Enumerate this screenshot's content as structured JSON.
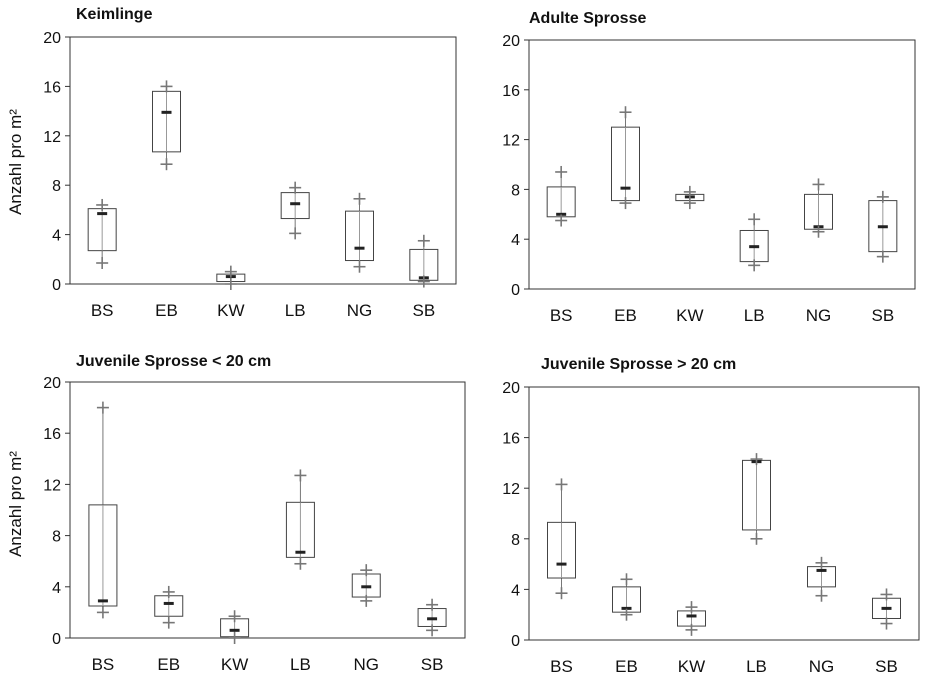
{
  "chart_data": [
    {
      "type": "box",
      "title": "Keimlinge",
      "ylabel": "Anzahl pro m²",
      "xlabel": "",
      "ylim": [
        0,
        20
      ],
      "yticks": [
        0,
        4,
        8,
        12,
        16,
        20
      ],
      "categories": [
        "BS",
        "EB",
        "KW",
        "LB",
        "NG",
        "SB"
      ],
      "boxes": [
        {
          "q1": 2.7,
          "median": 5.7,
          "q3": 6.1,
          "min": 1.7,
          "max": 6.4
        },
        {
          "q1": 10.7,
          "median": 13.9,
          "q3": 15.6,
          "min": 9.7,
          "max": 16.0
        },
        {
          "q1": 0.2,
          "median": 0.6,
          "q3": 0.8,
          "min": 0.0,
          "max": 1.0
        },
        {
          "q1": 5.3,
          "median": 6.5,
          "q3": 7.4,
          "min": 4.1,
          "max": 7.8
        },
        {
          "q1": 1.9,
          "median": 2.9,
          "q3": 5.9,
          "min": 1.4,
          "max": 6.9
        },
        {
          "q1": 0.3,
          "median": 0.5,
          "q3": 2.8,
          "min": 0.2,
          "max": 3.5
        }
      ]
    },
    {
      "type": "box",
      "title": "Adulte Sprosse",
      "ylabel": "",
      "xlabel": "",
      "ylim": [
        0,
        20
      ],
      "yticks": [
        0,
        4,
        8,
        12,
        16,
        20
      ],
      "categories": [
        "BS",
        "EB",
        "KW",
        "LB",
        "NG",
        "SB"
      ],
      "boxes": [
        {
          "q1": 5.8,
          "median": 6.0,
          "q3": 8.2,
          "min": 5.5,
          "max": 9.4
        },
        {
          "q1": 7.1,
          "median": 8.1,
          "q3": 13.0,
          "min": 6.9,
          "max": 14.2
        },
        {
          "q1": 7.1,
          "median": 7.4,
          "q3": 7.6,
          "min": 6.9,
          "max": 7.8
        },
        {
          "q1": 2.2,
          "median": 3.4,
          "q3": 4.7,
          "min": 1.9,
          "max": 5.6
        },
        {
          "q1": 4.8,
          "median": 5.0,
          "q3": 7.6,
          "min": 4.6,
          "max": 8.4
        },
        {
          "q1": 3.0,
          "median": 5.0,
          "q3": 7.1,
          "min": 2.6,
          "max": 7.4
        }
      ]
    },
    {
      "type": "box",
      "title": "Juvenile Sprosse < 20 cm",
      "ylabel": "Anzahl pro m²",
      "xlabel": "",
      "ylim": [
        0,
        20
      ],
      "yticks": [
        0,
        4,
        8,
        12,
        16,
        20
      ],
      "categories": [
        "BS",
        "EB",
        "KW",
        "LB",
        "NG",
        "SB"
      ],
      "boxes": [
        {
          "q1": 2.5,
          "median": 2.9,
          "q3": 10.4,
          "min": 2.0,
          "max": 18.0
        },
        {
          "q1": 1.7,
          "median": 2.7,
          "q3": 3.3,
          "min": 1.2,
          "max": 3.6
        },
        {
          "q1": 0.1,
          "median": 0.6,
          "q3": 1.5,
          "min": 0.0,
          "max": 1.7
        },
        {
          "q1": 6.3,
          "median": 6.7,
          "q3": 10.6,
          "min": 5.8,
          "max": 12.7
        },
        {
          "q1": 3.2,
          "median": 4.0,
          "q3": 5.0,
          "min": 2.9,
          "max": 5.3
        },
        {
          "q1": 0.9,
          "median": 1.5,
          "q3": 2.3,
          "min": 0.6,
          "max": 2.6
        }
      ]
    },
    {
      "type": "box",
      "title": "Juvenile Sprosse > 20 cm",
      "ylabel": "",
      "xlabel": "",
      "ylim": [
        0,
        20
      ],
      "yticks": [
        0,
        4,
        8,
        12,
        16,
        20
      ],
      "categories": [
        "BS",
        "EB",
        "KW",
        "LB",
        "NG",
        "SB"
      ],
      "boxes": [
        {
          "q1": 4.9,
          "median": 6.0,
          "q3": 9.3,
          "min": 3.7,
          "max": 12.3
        },
        {
          "q1": 2.2,
          "median": 2.5,
          "q3": 4.2,
          "min": 2.0,
          "max": 4.8
        },
        {
          "q1": 1.1,
          "median": 1.9,
          "q3": 2.3,
          "min": 0.8,
          "max": 2.6
        },
        {
          "q1": 8.7,
          "median": 14.1,
          "q3": 14.2,
          "min": 8.0,
          "max": 14.3
        },
        {
          "q1": 4.2,
          "median": 5.5,
          "q3": 5.8,
          "min": 3.5,
          "max": 6.1
        },
        {
          "q1": 1.7,
          "median": 2.5,
          "q3": 3.3,
          "min": 1.3,
          "max": 3.6
        }
      ]
    }
  ]
}
